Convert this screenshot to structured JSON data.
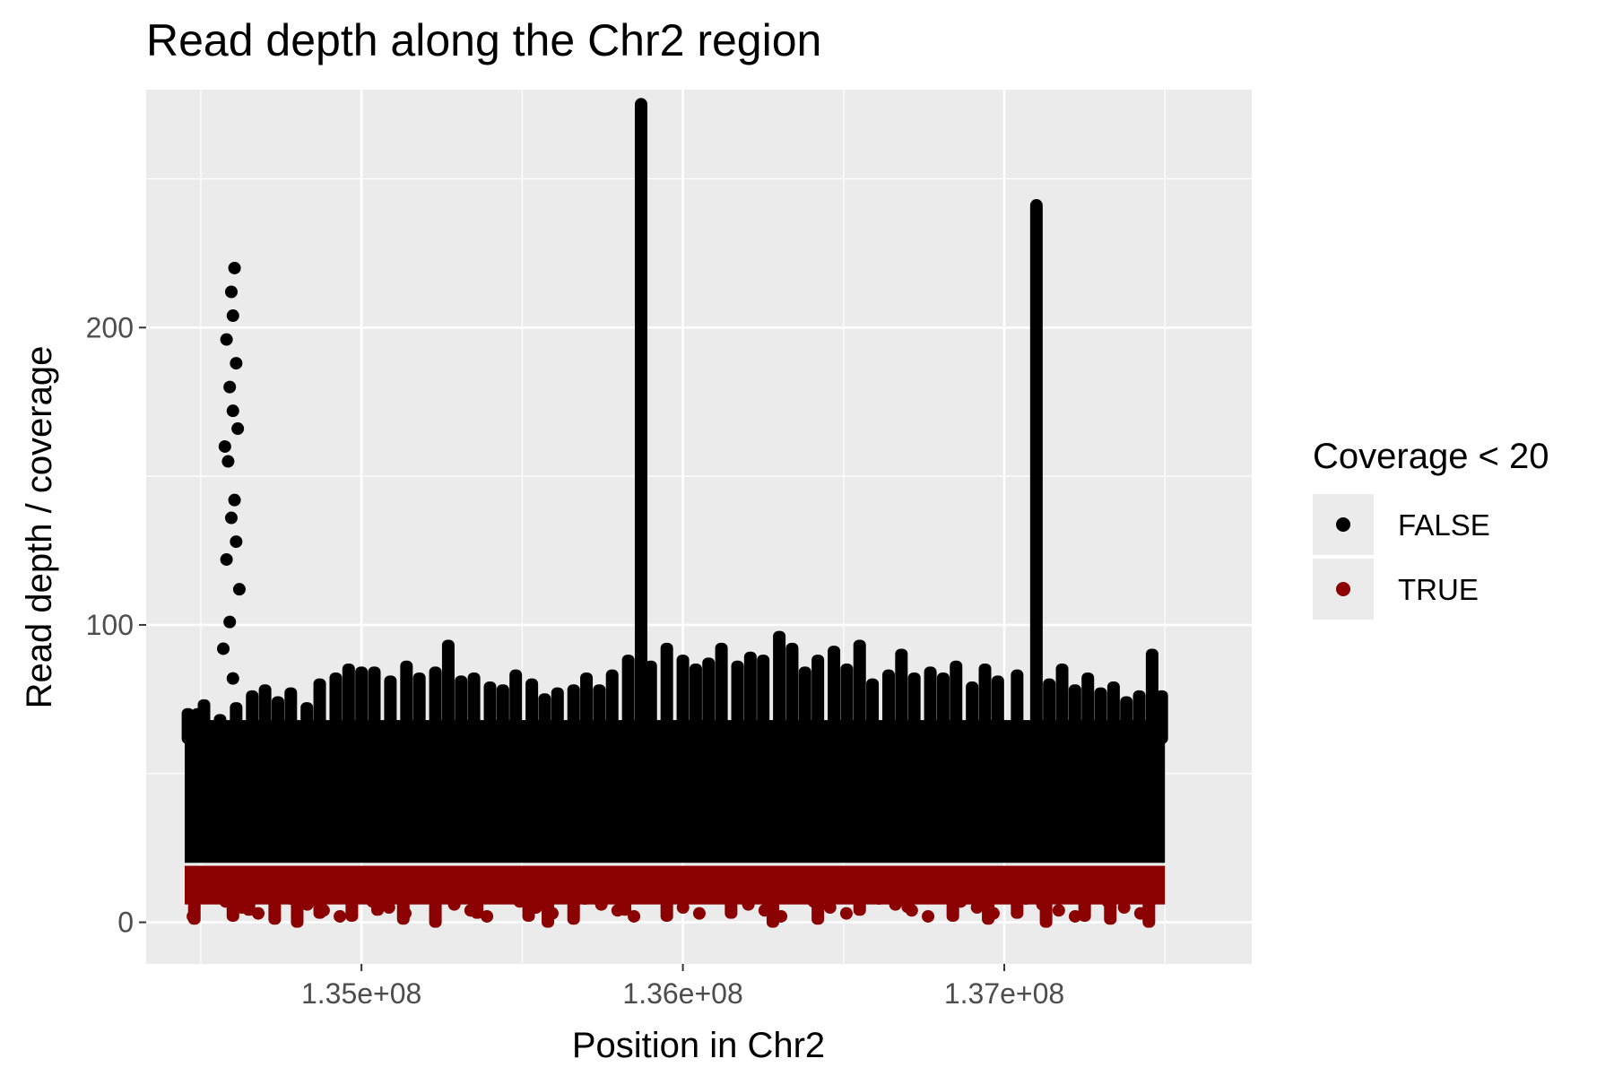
{
  "chart_data": {
    "type": "scatter",
    "title": "Read depth along the Chr2 region",
    "xlabel": "Position in Chr2",
    "ylabel": "Read depth / coverage",
    "xlim": [
      134330000,
      137770000
    ],
    "ylim": [
      -14,
      280
    ],
    "x_ticks": [
      135000000,
      136000000,
      137000000
    ],
    "x_tick_labels": [
      "1.35e+08",
      "1.36e+08",
      "1.37e+08"
    ],
    "y_ticks": [
      0,
      100,
      200
    ],
    "y_tick_labels": [
      "0",
      "100",
      "200"
    ],
    "grid": true,
    "threshold": 20,
    "legend": {
      "title": "Coverage < 20",
      "position": "right",
      "entries": [
        {
          "label": "FALSE",
          "color": "#000000"
        },
        {
          "label": "TRUE",
          "color": "#8b0000"
        }
      ]
    },
    "colors": {
      "false": "#000000",
      "true": "#8b0000"
    },
    "data_x_range": [
      134450000,
      137500000
    ],
    "series": [
      {
        "name": "FALSE",
        "color": "#000000",
        "spikes": [
          {
            "x": [
              134600000,
              134570000,
              134590000,
              134620000,
              134580000,
              134610000,
              134595000,
              134605000,
              134585000,
              134575000,
              134615000,
              134600000,
              134590000,
              134610000,
              134580000,
              134600000,
              134595000,
              134605000
            ],
            "y": [
              82,
              92,
              101,
              112,
              122,
              128,
              136,
              142,
              155,
              160,
              166,
              172,
              180,
              188,
              196,
              204,
              212,
              220
            ]
          },
          {
            "x": [
              135870000,
              135870000,
              135870000,
              135870000,
              135870000,
              135870000
            ],
            "y": [
              100,
              140,
              180,
              220,
              255,
              276
            ]
          },
          {
            "x": [
              137100000,
              137100000,
              137100000,
              137100000,
              137100000
            ],
            "y": [
              80,
              130,
              180,
              220,
              242
            ]
          }
        ],
        "bars": {
          "x": [
            134460000,
            134490000,
            134510000,
            134560000,
            134610000,
            134660000,
            134700000,
            134740000,
            134780000,
            134830000,
            134870000,
            134920000,
            134960000,
            135000000,
            135040000,
            135090000,
            135140000,
            135180000,
            135230000,
            135270000,
            135310000,
            135350000,
            135400000,
            135440000,
            135480000,
            135530000,
            135570000,
            135610000,
            135660000,
            135700000,
            135740000,
            135780000,
            135830000,
            135900000,
            135950000,
            136000000,
            136040000,
            136080000,
            136120000,
            136170000,
            136210000,
            136250000,
            136300000,
            136340000,
            136380000,
            136420000,
            136470000,
            136510000,
            136550000,
            136590000,
            136640000,
            136680000,
            136720000,
            136770000,
            136810000,
            136850000,
            136900000,
            136940000,
            136980000,
            137040000,
            137140000,
            137180000,
            137220000,
            137260000,
            137300000,
            137340000,
            137380000,
            137420000,
            137460000,
            137490000
          ],
          "y": [
            72,
            72,
            75,
            70,
            74,
            78,
            80,
            76,
            79,
            74,
            82,
            84,
            87,
            86,
            86,
            83,
            88,
            84,
            86,
            95,
            83,
            84,
            81,
            80,
            85,
            82,
            77,
            79,
            80,
            84,
            80,
            85,
            90,
            88,
            94,
            90,
            87,
            89,
            94,
            88,
            91,
            90,
            98,
            94,
            86,
            90,
            93,
            87,
            95,
            82,
            85,
            92,
            84,
            86,
            84,
            88,
            81,
            87,
            83,
            85,
            82,
            87,
            80,
            84,
            79,
            81,
            76,
            78,
            92,
            78
          ]
        }
      },
      {
        "name": "TRUE",
        "color": "#8b0000",
        "band": [
          0,
          19
        ],
        "dips": {
          "x": [
            134480000,
            134600000,
            134650000,
            134730000,
            134800000,
            134870000,
            134970000,
            135050000,
            135130000,
            135230000,
            135360000,
            135520000,
            135580000,
            135660000,
            135820000,
            135950000,
            136150000,
            136280000,
            136420000,
            136550000,
            136700000,
            136840000,
            136950000,
            137040000,
            137130000,
            137250000,
            137330000,
            137450000
          ],
          "y": [
            1,
            2,
            4,
            1,
            0,
            3,
            2,
            4,
            1,
            0,
            3,
            2,
            0,
            1,
            4,
            2,
            3,
            0,
            1,
            4,
            5,
            2,
            1,
            3,
            0,
            2,
            1,
            0
          ]
        }
      }
    ]
  }
}
